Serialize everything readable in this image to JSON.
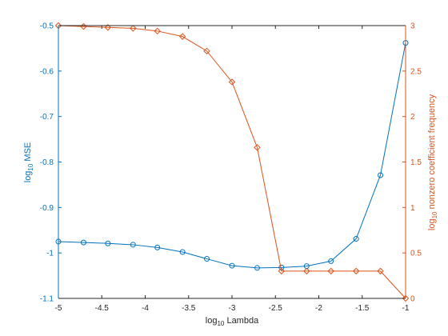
{
  "chart_data": {
    "type": "line",
    "xlabel_base": "log",
    "xlabel_sub": "10",
    "xlabel_rest": " Lambda",
    "ylabel_left_base": "log",
    "ylabel_left_sub": "10",
    "ylabel_left_rest": " MSE",
    "ylabel_right_base": "log",
    "ylabel_right_sub": "10",
    "ylabel_right_rest": " nonzero coefficient frequency",
    "xlim": [
      -5,
      -1
    ],
    "ylim_left": [
      -1.1,
      -0.5
    ],
    "ylim_right": [
      0,
      3
    ],
    "xticks": [
      "-5",
      "-4.5",
      "-4",
      "-3.5",
      "-3",
      "-2.5",
      "-2",
      "-1.5",
      "-1"
    ],
    "yticks_left": [
      "-1.1",
      "-1",
      "-0.9",
      "-0.8",
      "-0.7",
      "-0.6",
      "-0.5"
    ],
    "yticks_right": [
      "0",
      "0.5",
      "1",
      "1.5",
      "2",
      "2.5",
      "3"
    ],
    "grid": false,
    "colors": {
      "left": "#0072BD",
      "right": "#D95319"
    },
    "series": [
      {
        "axis": "left",
        "marker": "circle",
        "x": [
          -5,
          -4.71,
          -4.43,
          -4.14,
          -3.86,
          -3.57,
          -3.29,
          -3.0,
          -2.71,
          -2.43,
          -2.14,
          -1.86,
          -1.57,
          -1.29,
          -1.0
        ],
        "y": [
          -0.975,
          -0.977,
          -0.979,
          -0.982,
          -0.988,
          -0.998,
          -1.013,
          -1.028,
          -1.033,
          -1.032,
          -1.029,
          -1.018,
          -0.969,
          -0.829,
          -0.538
        ]
      },
      {
        "axis": "right",
        "marker": "diamond",
        "x": [
          -5,
          -4.71,
          -4.43,
          -4.14,
          -3.86,
          -3.57,
          -3.29,
          -3.0,
          -2.71,
          -2.43,
          -2.14,
          -1.86,
          -1.57,
          -1.29,
          -1.0
        ],
        "y": [
          3.0,
          2.99,
          2.98,
          2.97,
          2.94,
          2.88,
          2.72,
          2.38,
          1.66,
          0.3,
          0.3,
          0.3,
          0.3,
          0.3,
          0.0
        ]
      }
    ]
  }
}
